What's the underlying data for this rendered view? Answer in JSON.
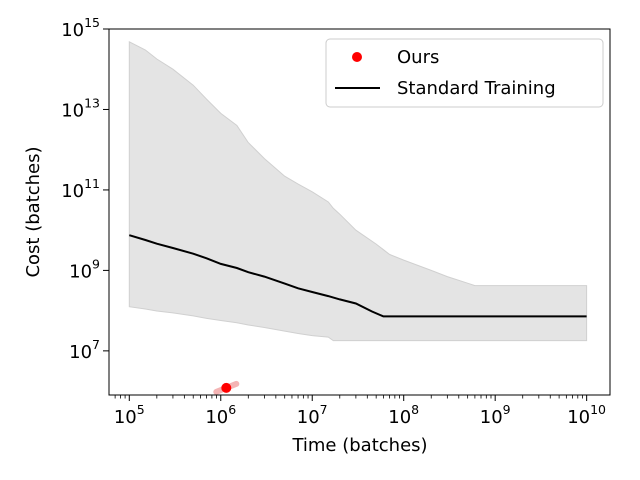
{
  "chart_data": {
    "type": "line",
    "title": "",
    "xlabel": "Time (batches)",
    "ylabel": "Cost (batches)",
    "xscale": "log",
    "yscale": "log",
    "xlim": [
      60000,
      18000000000
    ],
    "ylim": [
      800000,
      1000000000000000
    ],
    "grid": false,
    "legend": {
      "location": "top-right",
      "entries": [
        "Ours",
        "Standard Training"
      ]
    },
    "xticks": [
      {
        "value": 100000,
        "base": "10",
        "exp": "5"
      },
      {
        "value": 1000000,
        "base": "10",
        "exp": "6"
      },
      {
        "value": 10000000,
        "base": "10",
        "exp": "7"
      },
      {
        "value": 100000000,
        "base": "10",
        "exp": "8"
      },
      {
        "value": 1000000000,
        "base": "10",
        "exp": "9"
      },
      {
        "value": 10000000000,
        "base": "10",
        "exp": "10"
      }
    ],
    "yticks": [
      {
        "value": 10000000,
        "base": "10",
        "exp": "7"
      },
      {
        "value": 1000000000,
        "base": "10",
        "exp": "9"
      },
      {
        "value": 100000000000,
        "base": "10",
        "exp": "11"
      },
      {
        "value": 10000000000000,
        "base": "10",
        "exp": "13"
      },
      {
        "value": 1000000000000000,
        "base": "10",
        "exp": "15"
      }
    ],
    "series": [
      {
        "name": "Standard Training",
        "kind": "line",
        "color": "#000000",
        "x": [
          100000,
          150000,
          200000,
          300000,
          500000,
          700000,
          1000000,
          1500000,
          2000000,
          3000000,
          5000000,
          7000000,
          10000000,
          15000000,
          20000000,
          30000000,
          45000000,
          60000000,
          100000000,
          1000000000,
          10000000000
        ],
        "y": [
          7500000000,
          5700000000,
          4600000000,
          3600000000,
          2600000000,
          2000000000,
          1450000000,
          1150000000,
          900000000,
          700000000,
          470000000,
          360000000,
          290000000,
          230000000,
          190000000,
          150000000,
          95000000,
          72000000,
          72000000,
          72000000,
          72000000
        ]
      },
      {
        "name": "Ours",
        "kind": "scatter",
        "color": "#ff0000",
        "x": [
          1150000
        ],
        "y": [
          1200000
        ]
      }
    ],
    "band": {
      "color": "#e4e4e4",
      "edge_color": "#d0d0d0",
      "x": [
        100000,
        150000,
        200000,
        300000,
        500000,
        700000,
        1000000,
        1500000,
        2000000,
        3000000,
        5000000,
        7000000,
        10000000,
        15000000,
        17000000,
        20000000,
        30000000,
        50000000,
        70000000,
        100000000,
        200000000,
        300000000,
        500000000,
        600000000,
        1000000000,
        10000000000
      ],
      "upper": [
        480000000000000,
        300000000000000,
        180000000000000,
        100000000000000,
        40000000000000,
        18000000000000,
        8000000000000,
        4000000000000,
        1500000000000,
        600000000000,
        220000000000,
        140000000000,
        90000000000,
        50000000000,
        35000000000,
        25000000000,
        10000000000,
        4500000000,
        2500000000,
        1800000000,
        1000000000,
        700000000,
        480000000,
        420000000,
        420000000,
        420000000
      ],
      "lower": [
        125000000,
        110000000,
        98000000,
        88000000,
        74000000,
        64000000,
        57000000,
        50000000,
        44000000,
        38000000,
        31000000,
        27000000,
        24000000,
        22000000,
        18000000,
        18000000,
        18000000,
        18000000,
        18000000,
        18000000,
        18000000,
        18000000,
        18000000,
        18000000,
        18000000,
        18000000
      ]
    },
    "ours_error_color": "#f4b4b4"
  }
}
